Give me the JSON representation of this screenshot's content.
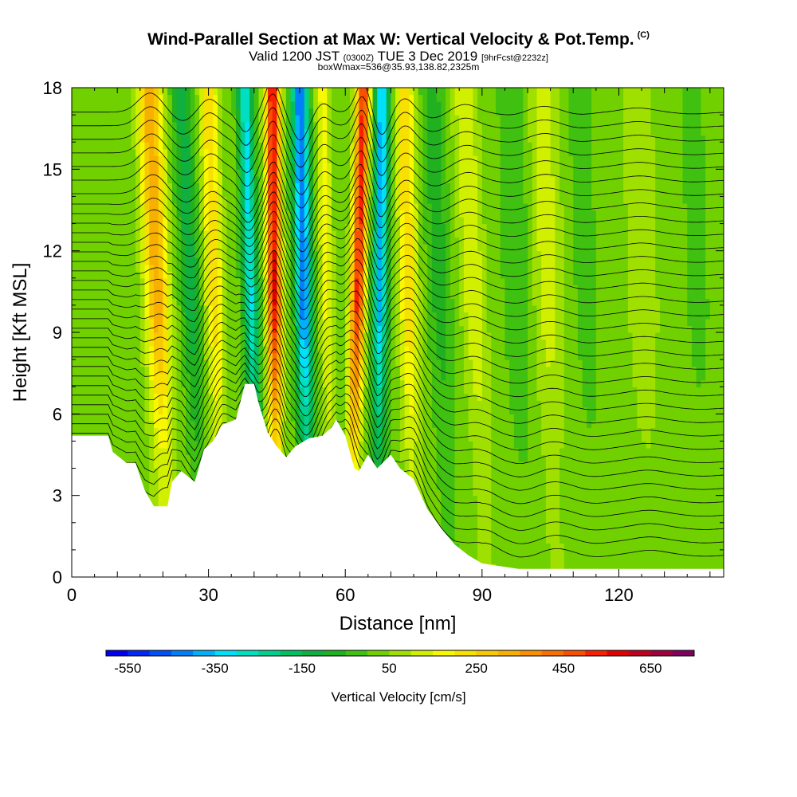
{
  "header": {
    "title": "Wind-Parallel Section at Max W: Vertical Velocity & Pot.Temp.",
    "title_mark": "(C)",
    "valid_prefix": "Valid 1200 JST",
    "valid_utc": "(0300Z)",
    "valid_date": "TUE 3 Dec 2019",
    "valid_fcst": "[9hrFcst@2232z]",
    "box_line": "boxWmax=536@35.93,138.82,2325m"
  },
  "chart_data": {
    "type": "heatmap",
    "xlabel": "Distance [nm]",
    "ylabel": "Height [Kft MSL]",
    "xlim": [
      0,
      143
    ],
    "ylim": [
      0,
      18
    ],
    "x_ticks": [
      0,
      30,
      60,
      90,
      120
    ],
    "y_ticks": [
      0,
      3,
      6,
      9,
      12,
      15,
      18
    ],
    "colorbar": {
      "title": "Vertical Velocity [cm/s]",
      "tick_labels": [
        "-550",
        "-350",
        "-150",
        "50",
        "250",
        "450",
        "650"
      ],
      "min": -600,
      "max": 750,
      "step": 50,
      "colors": [
        "#0000f0",
        "#0028f8",
        "#0050f8",
        "#0080f8",
        "#00b0f8",
        "#00e0f8",
        "#00e0c0",
        "#00d090",
        "#00c060",
        "#10b040",
        "#20b020",
        "#40c010",
        "#70d000",
        "#a0e000",
        "#d0f000",
        "#f8f800",
        "#f8e000",
        "#f8c800",
        "#f8b000",
        "#f89000",
        "#f87000",
        "#f85000",
        "#f82000",
        "#e00000",
        "#c00020",
        "#a00040",
        "#800060"
      ]
    },
    "terrain_kft": [
      [
        0,
        5.2
      ],
      [
        8,
        5.2
      ],
      [
        9,
        4.6
      ],
      [
        12,
        4.2
      ],
      [
        14,
        4.2
      ],
      [
        16,
        3.2
      ],
      [
        18,
        2.6
      ],
      [
        21,
        2.6
      ],
      [
        22,
        3.5
      ],
      [
        24,
        3.9
      ],
      [
        27,
        3.5
      ],
      [
        29,
        4.7
      ],
      [
        31,
        5.0
      ],
      [
        33,
        5.6
      ],
      [
        36,
        5.8
      ],
      [
        38,
        7.1
      ],
      [
        40,
        7.1
      ],
      [
        41,
        6.4
      ],
      [
        43,
        5.3
      ],
      [
        45,
        4.8
      ],
      [
        47,
        4.4
      ],
      [
        49,
        4.8
      ],
      [
        52,
        5.1
      ],
      [
        55,
        5.2
      ],
      [
        57,
        5.5
      ],
      [
        58,
        5.8
      ],
      [
        59,
        5.5
      ],
      [
        60,
        5.2
      ],
      [
        62,
        4.0
      ],
      [
        63,
        3.9
      ],
      [
        65,
        4.5
      ],
      [
        67,
        4.0
      ],
      [
        70,
        4.5
      ],
      [
        72,
        4.0
      ],
      [
        75,
        3.6
      ],
      [
        78,
        2.5
      ],
      [
        81,
        1.8
      ],
      [
        84,
        1.2
      ],
      [
        87,
        0.8
      ],
      [
        90,
        0.5
      ],
      [
        94,
        0.4
      ],
      [
        98,
        0.3
      ],
      [
        143,
        0.3
      ]
    ],
    "w_features": [
      {
        "x_top": 17,
        "x_bot": 21,
        "peak": 320,
        "width": 2.6
      },
      {
        "x_top": 24,
        "x_bot": 29,
        "peak": -150,
        "width": 2.2
      },
      {
        "x_top": 30,
        "x_bot": 33,
        "peak": 220,
        "width": 2.0
      },
      {
        "x_top": 38,
        "x_bot": 41,
        "peak": -330,
        "width": 1.6
      },
      {
        "x_top": 44,
        "x_bot": 45,
        "peak": 536,
        "width": 1.6
      },
      {
        "x_top": 50,
        "x_bot": 52,
        "peak": -470,
        "width": 1.8
      },
      {
        "x_top": 55,
        "x_bot": 57,
        "peak": 150,
        "width": 1.5
      },
      {
        "x_top": 64,
        "x_bot": 61,
        "peak": 500,
        "width": 1.6
      },
      {
        "x_top": 68,
        "x_bot": 67,
        "peak": -400,
        "width": 1.6
      },
      {
        "x_top": 73,
        "x_bot": 75,
        "peak": 230,
        "width": 2.0
      },
      {
        "x_top": 79,
        "x_bot": 83,
        "peak": -100,
        "width": 2.4
      },
      {
        "x_top": 86,
        "x_bot": 91,
        "peak": 130,
        "width": 2.6
      },
      {
        "x_top": 97,
        "x_bot": 100,
        "peak": -60,
        "width": 3.5
      },
      {
        "x_top": 103,
        "x_bot": 106,
        "peak": 110,
        "width": 3.5
      },
      {
        "x_top": 111,
        "x_bot": 115,
        "peak": -40,
        "width": 3.0
      },
      {
        "x_top": 124,
        "x_bot": 127,
        "peak": 70,
        "width": 3.5
      },
      {
        "x_top": 136,
        "x_bot": 139,
        "peak": -30,
        "width": 3.5
      }
    ],
    "theta_contours": {
      "count": 34,
      "base_kft": 0.6,
      "spacing_kft": 0.5
    }
  }
}
